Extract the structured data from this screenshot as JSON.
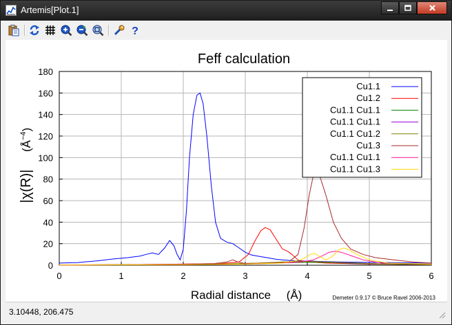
{
  "window": {
    "title": "Artemis[Plot.1]",
    "icon": "plot-app-icon",
    "buttons": {
      "minimize": "minimize-icon",
      "maximize": "maximize-icon",
      "close": "close-icon"
    }
  },
  "toolbar": [
    {
      "name": "save-plot-button",
      "icon": "clipboard-icon"
    },
    {
      "name": "refresh-button",
      "icon": "refresh-icon"
    },
    {
      "name": "grid-button",
      "icon": "grid-icon"
    },
    {
      "name": "zoom-in-button",
      "icon": "zoom-in-icon"
    },
    {
      "name": "zoom-out-button",
      "icon": "zoom-out-icon"
    },
    {
      "name": "zoom-reset-button",
      "icon": "zoom-fit-icon"
    },
    {
      "name": "settings-button",
      "icon": "wrench-icon"
    },
    {
      "name": "help-button",
      "icon": "help-icon"
    }
  ],
  "status": {
    "coordinates": "3.10448,  206.475"
  },
  "chart_data": {
    "type": "line",
    "title": "Feff calculation",
    "xlabel": "Radial distance",
    "xlabel_unit": "(Å)",
    "ylabel": "|χ(R)|",
    "ylabel_unit": "(Å",
    "ylabel_unit_exp": "−4",
    "ylabel_unit_close": ")",
    "xlim": [
      0,
      6
    ],
    "ylim": [
      0,
      180
    ],
    "xticks": [
      0,
      1,
      2,
      3,
      4,
      5,
      6
    ],
    "yticks": [
      0,
      20,
      40,
      60,
      80,
      100,
      120,
      140,
      160,
      180
    ],
    "grid": true,
    "legend_position": "top-right",
    "footer": "Demeter 0.9.17 © Bruce Ravel 2006-2013",
    "series": [
      {
        "name": "Cu1.1",
        "color": "#0000ff",
        "points": [
          [
            0,
            2
          ],
          [
            0.3,
            2.5
          ],
          [
            0.6,
            4
          ],
          [
            0.9,
            6
          ],
          [
            1.1,
            7
          ],
          [
            1.3,
            8.5
          ],
          [
            1.4,
            10
          ],
          [
            1.5,
            11.5
          ],
          [
            1.6,
            10
          ],
          [
            1.7,
            16
          ],
          [
            1.78,
            23
          ],
          [
            1.85,
            18
          ],
          [
            1.9,
            10
          ],
          [
            1.95,
            5
          ],
          [
            2.0,
            15
          ],
          [
            2.05,
            50
          ],
          [
            2.1,
            100
          ],
          [
            2.16,
            140
          ],
          [
            2.22,
            158
          ],
          [
            2.27,
            160
          ],
          [
            2.32,
            150
          ],
          [
            2.38,
            120
          ],
          [
            2.45,
            75
          ],
          [
            2.52,
            40
          ],
          [
            2.6,
            25
          ],
          [
            2.7,
            21.5
          ],
          [
            2.8,
            20
          ],
          [
            2.9,
            16
          ],
          [
            3.0,
            12
          ],
          [
            3.1,
            9.5
          ],
          [
            3.2,
            8.5
          ],
          [
            3.3,
            7.5
          ],
          [
            3.4,
            6.5
          ],
          [
            3.5,
            5.5
          ],
          [
            3.6,
            5
          ],
          [
            3.7,
            4.5
          ],
          [
            3.8,
            4.2
          ],
          [
            3.9,
            4
          ],
          [
            4.0,
            3.8
          ],
          [
            4.2,
            3.5
          ],
          [
            4.5,
            3
          ],
          [
            5,
            2.6
          ],
          [
            5.5,
            2.3
          ],
          [
            6,
            2
          ]
        ]
      },
      {
        "name": "Cu1.2",
        "color": "#ff0000",
        "points": [
          [
            0,
            0.3
          ],
          [
            1,
            0.5
          ],
          [
            2,
            1
          ],
          [
            2.6,
            1.5
          ],
          [
            2.9,
            3
          ],
          [
            3.05,
            10
          ],
          [
            3.15,
            22
          ],
          [
            3.25,
            32
          ],
          [
            3.32,
            35
          ],
          [
            3.4,
            33
          ],
          [
            3.5,
            24
          ],
          [
            3.6,
            15
          ],
          [
            3.68,
            13
          ],
          [
            3.75,
            10
          ],
          [
            3.85,
            5
          ],
          [
            4.0,
            3
          ],
          [
            4.3,
            2
          ],
          [
            5,
            1
          ],
          [
            6,
            0.5
          ]
        ]
      },
      {
        "name": "Cu1.1  Cu1.1",
        "color": "#008000",
        "points": [
          [
            0,
            0.2
          ],
          [
            1.5,
            0.5
          ],
          [
            2.5,
            1
          ],
          [
            3,
            1.5
          ],
          [
            3.5,
            2
          ],
          [
            3.8,
            2.5
          ],
          [
            4.1,
            2.8
          ],
          [
            4.4,
            2.4
          ],
          [
            4.8,
            1.5
          ],
          [
            5.5,
            0.8
          ],
          [
            6,
            0.5
          ]
        ]
      },
      {
        "name": "Cu1.1  Cu1.1",
        "color": "#9400d3",
        "points": [
          [
            0,
            0.2
          ],
          [
            1.5,
            0.5
          ],
          [
            2.5,
            0.8
          ],
          [
            3,
            1.5
          ],
          [
            3.5,
            2.5
          ],
          [
            3.8,
            3.2
          ],
          [
            4.05,
            3.8
          ],
          [
            4.3,
            3
          ],
          [
            4.7,
            2
          ],
          [
            5.3,
            1
          ],
          [
            6,
            0.5
          ]
        ]
      },
      {
        "name": "Cu1.1  Cu1.2",
        "color": "#808000",
        "points": [
          [
            0,
            0.2
          ],
          [
            1.5,
            0.5
          ],
          [
            2.5,
            1
          ],
          [
            3.2,
            2
          ],
          [
            3.6,
            3
          ],
          [
            3.9,
            3.5
          ],
          [
            4.2,
            3.2
          ],
          [
            4.6,
            2.5
          ],
          [
            5.2,
            1.2
          ],
          [
            6,
            0.5
          ]
        ]
      },
      {
        "name": "Cu1.3",
        "color": "#a52a2a",
        "points": [
          [
            0,
            0.2
          ],
          [
            1,
            0.5
          ],
          [
            2,
            1
          ],
          [
            2.5,
            1.5
          ],
          [
            2.7,
            3
          ],
          [
            2.8,
            5
          ],
          [
            2.88,
            3
          ],
          [
            3,
            1.5
          ],
          [
            3.5,
            2
          ],
          [
            3.7,
            3
          ],
          [
            3.85,
            10
          ],
          [
            3.95,
            35
          ],
          [
            4.03,
            65
          ],
          [
            4.1,
            84
          ],
          [
            4.15,
            87
          ],
          [
            4.2,
            83
          ],
          [
            4.3,
            65
          ],
          [
            4.42,
            40
          ],
          [
            4.55,
            25
          ],
          [
            4.7,
            15
          ],
          [
            4.9,
            10
          ],
          [
            5.1,
            7
          ],
          [
            5.4,
            5
          ],
          [
            5.7,
            3
          ],
          [
            6,
            2
          ]
        ]
      },
      {
        "name": "Cu1.1  Cu1.1",
        "color": "#ff1493",
        "points": [
          [
            0,
            0.2
          ],
          [
            2,
            0.5
          ],
          [
            3,
            1
          ],
          [
            3.6,
            2
          ],
          [
            3.9,
            3
          ],
          [
            4.1,
            5
          ],
          [
            4.25,
            9
          ],
          [
            4.35,
            12
          ],
          [
            4.45,
            13
          ],
          [
            4.55,
            12
          ],
          [
            4.7,
            9
          ],
          [
            4.9,
            5
          ],
          [
            5.2,
            2
          ],
          [
            6,
            1
          ]
        ]
      },
      {
        "name": "Cu1.1  Cu1.3",
        "color": "#ffd700",
        "points": [
          [
            0,
            0.2
          ],
          [
            2,
            0.5
          ],
          [
            3,
            1
          ],
          [
            3.6,
            2
          ],
          [
            3.9,
            5
          ],
          [
            4.05,
            10
          ],
          [
            4.12,
            11
          ],
          [
            4.2,
            8
          ],
          [
            4.3,
            5
          ],
          [
            4.4,
            8
          ],
          [
            4.5,
            14
          ],
          [
            4.58,
            16
          ],
          [
            4.65,
            15
          ],
          [
            4.8,
            10
          ],
          [
            5.0,
            5
          ],
          [
            5.3,
            2
          ],
          [
            6,
            1
          ]
        ]
      }
    ]
  }
}
